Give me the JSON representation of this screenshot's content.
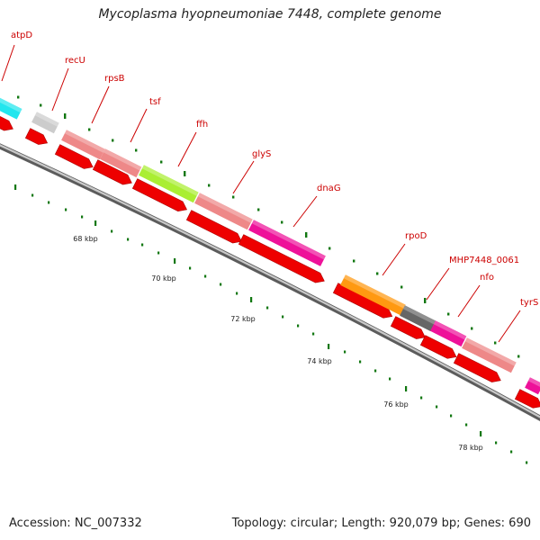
{
  "title": "Mycoplasma hyopneumoniae 7448, complete genome",
  "footer": {
    "accession": "Accession: NC_007332",
    "summary": "Topology: circular; Length: 920,079 bp; Genes: 690"
  },
  "colors": {
    "label": "#cc0000",
    "cds": "#ee0000",
    "backbone": "#777777",
    "tick": "#117711"
  },
  "genes": [
    {
      "name": "atpD",
      "color": "#22e6ee"
    },
    {
      "name": "recU",
      "color": "#cccccc"
    },
    {
      "name": "rpsB",
      "color": "#ee8888"
    },
    {
      "name": "tsf",
      "color": "#ee8888"
    },
    {
      "name": "ffh",
      "color": "#aaee33"
    },
    {
      "name": "glyS",
      "color": "#ee8888"
    },
    {
      "name": "dnaG",
      "color": "#ee1199"
    },
    {
      "name": "rpoD",
      "color": "#ff9911"
    },
    {
      "name": "MHP7448_0061",
      "color": "#666666"
    },
    {
      "name": "nfo",
      "color": "#ee1199"
    },
    {
      "name": "tyrS",
      "color": "#ee8888"
    }
  ],
  "scale_labels": [
    "68 kbp",
    "70 kbp",
    "72 kbp",
    "74 kbp",
    "76 kbp",
    "78 kbp"
  ]
}
